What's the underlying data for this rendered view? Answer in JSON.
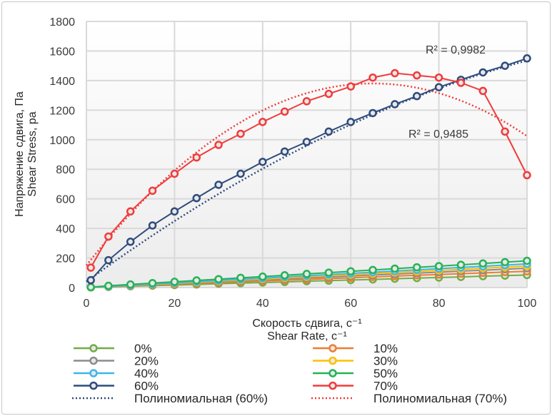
{
  "chart_data": {
    "type": "line",
    "xlabel": [
      "Скорость сдвига, с⁻¹",
      "Shear Rate, с⁻¹"
    ],
    "ylabel": [
      "Напряжение сдвига, Па",
      "Shear Stress, pa"
    ],
    "xlim": [
      0,
      100
    ],
    "ylim": [
      0,
      1800
    ],
    "xticks": [
      0,
      20,
      40,
      60,
      80,
      100
    ],
    "yticks": [
      0,
      200,
      400,
      600,
      800,
      1000,
      1200,
      1400,
      1600,
      1800
    ],
    "grid": true,
    "legend_position": "bottom",
    "x": [
      1,
      5,
      10,
      15,
      20,
      25,
      30,
      35,
      40,
      45,
      50,
      55,
      60,
      65,
      70,
      75,
      80,
      85,
      90,
      95,
      100
    ],
    "series": [
      {
        "name": "0%",
        "color": "#70ad47",
        "values": [
          1,
          4,
          9,
          13,
          17,
          21,
          26,
          30,
          34,
          38,
          43,
          47,
          51,
          55,
          60,
          64,
          68,
          72,
          77,
          81,
          85
        ]
      },
      {
        "name": "10%",
        "color": "#ed7d31",
        "values": [
          1,
          6,
          11,
          17,
          22,
          28,
          33,
          39,
          44,
          50,
          55,
          61,
          66,
          72,
          77,
          83,
          88,
          94,
          99,
          105,
          110
        ]
      },
      {
        "name": "20%",
        "color": "#8c8c8c",
        "values": [
          1,
          7,
          13,
          20,
          26,
          33,
          39,
          46,
          52,
          59,
          65,
          72,
          78,
          85,
          91,
          98,
          104,
          111,
          117,
          124,
          130
        ]
      },
      {
        "name": "30%",
        "color": "#ffc000",
        "values": [
          1,
          7,
          15,
          22,
          29,
          36,
          44,
          51,
          58,
          65,
          73,
          80,
          87,
          94,
          102,
          109,
          116,
          123,
          131,
          138,
          145
        ]
      },
      {
        "name": "40%",
        "color": "#3fb5ec",
        "values": [
          2,
          8,
          16,
          24,
          32,
          40,
          48,
          56,
          64,
          72,
          80,
          88,
          96,
          104,
          112,
          120,
          128,
          136,
          144,
          152,
          160
        ]
      },
      {
        "name": "50%",
        "color": "#27b256",
        "values": [
          3,
          12,
          21,
          30,
          39,
          48,
          57,
          66,
          74,
          83,
          92,
          101,
          110,
          119,
          128,
          137,
          145,
          154,
          163,
          172,
          181
        ]
      },
      {
        "name": "60%",
        "color": "#2f4b7c",
        "values": [
          50,
          185,
          310,
          420,
          515,
          605,
          695,
          770,
          850,
          920,
          985,
          1055,
          1120,
          1180,
          1240,
          1295,
          1355,
          1405,
          1455,
          1500,
          1550
        ]
      },
      {
        "name": "70%",
        "color": "#f23b3b",
        "values": [
          135,
          345,
          515,
          655,
          770,
          880,
          965,
          1040,
          1120,
          1190,
          1260,
          1310,
          1360,
          1420,
          1450,
          1435,
          1420,
          1385,
          1330,
          1055,
          760
        ]
      }
    ],
    "trendlines": [
      {
        "name": "Полиномиальная (60%)",
        "of": "60%",
        "color": "#2f4b7c",
        "type": "polynomial",
        "coef": [
          40,
          21.85,
          -0.069
        ],
        "r2_label": "R² = 0,9982"
      },
      {
        "name": "Полиномиальная (70%)",
        "of": "70%",
        "color": "#f23b3b",
        "type": "polynomial",
        "coef": [
          150,
          37.85,
          -0.2911
        ],
        "r2_label": "R² = 0,9485"
      }
    ]
  }
}
